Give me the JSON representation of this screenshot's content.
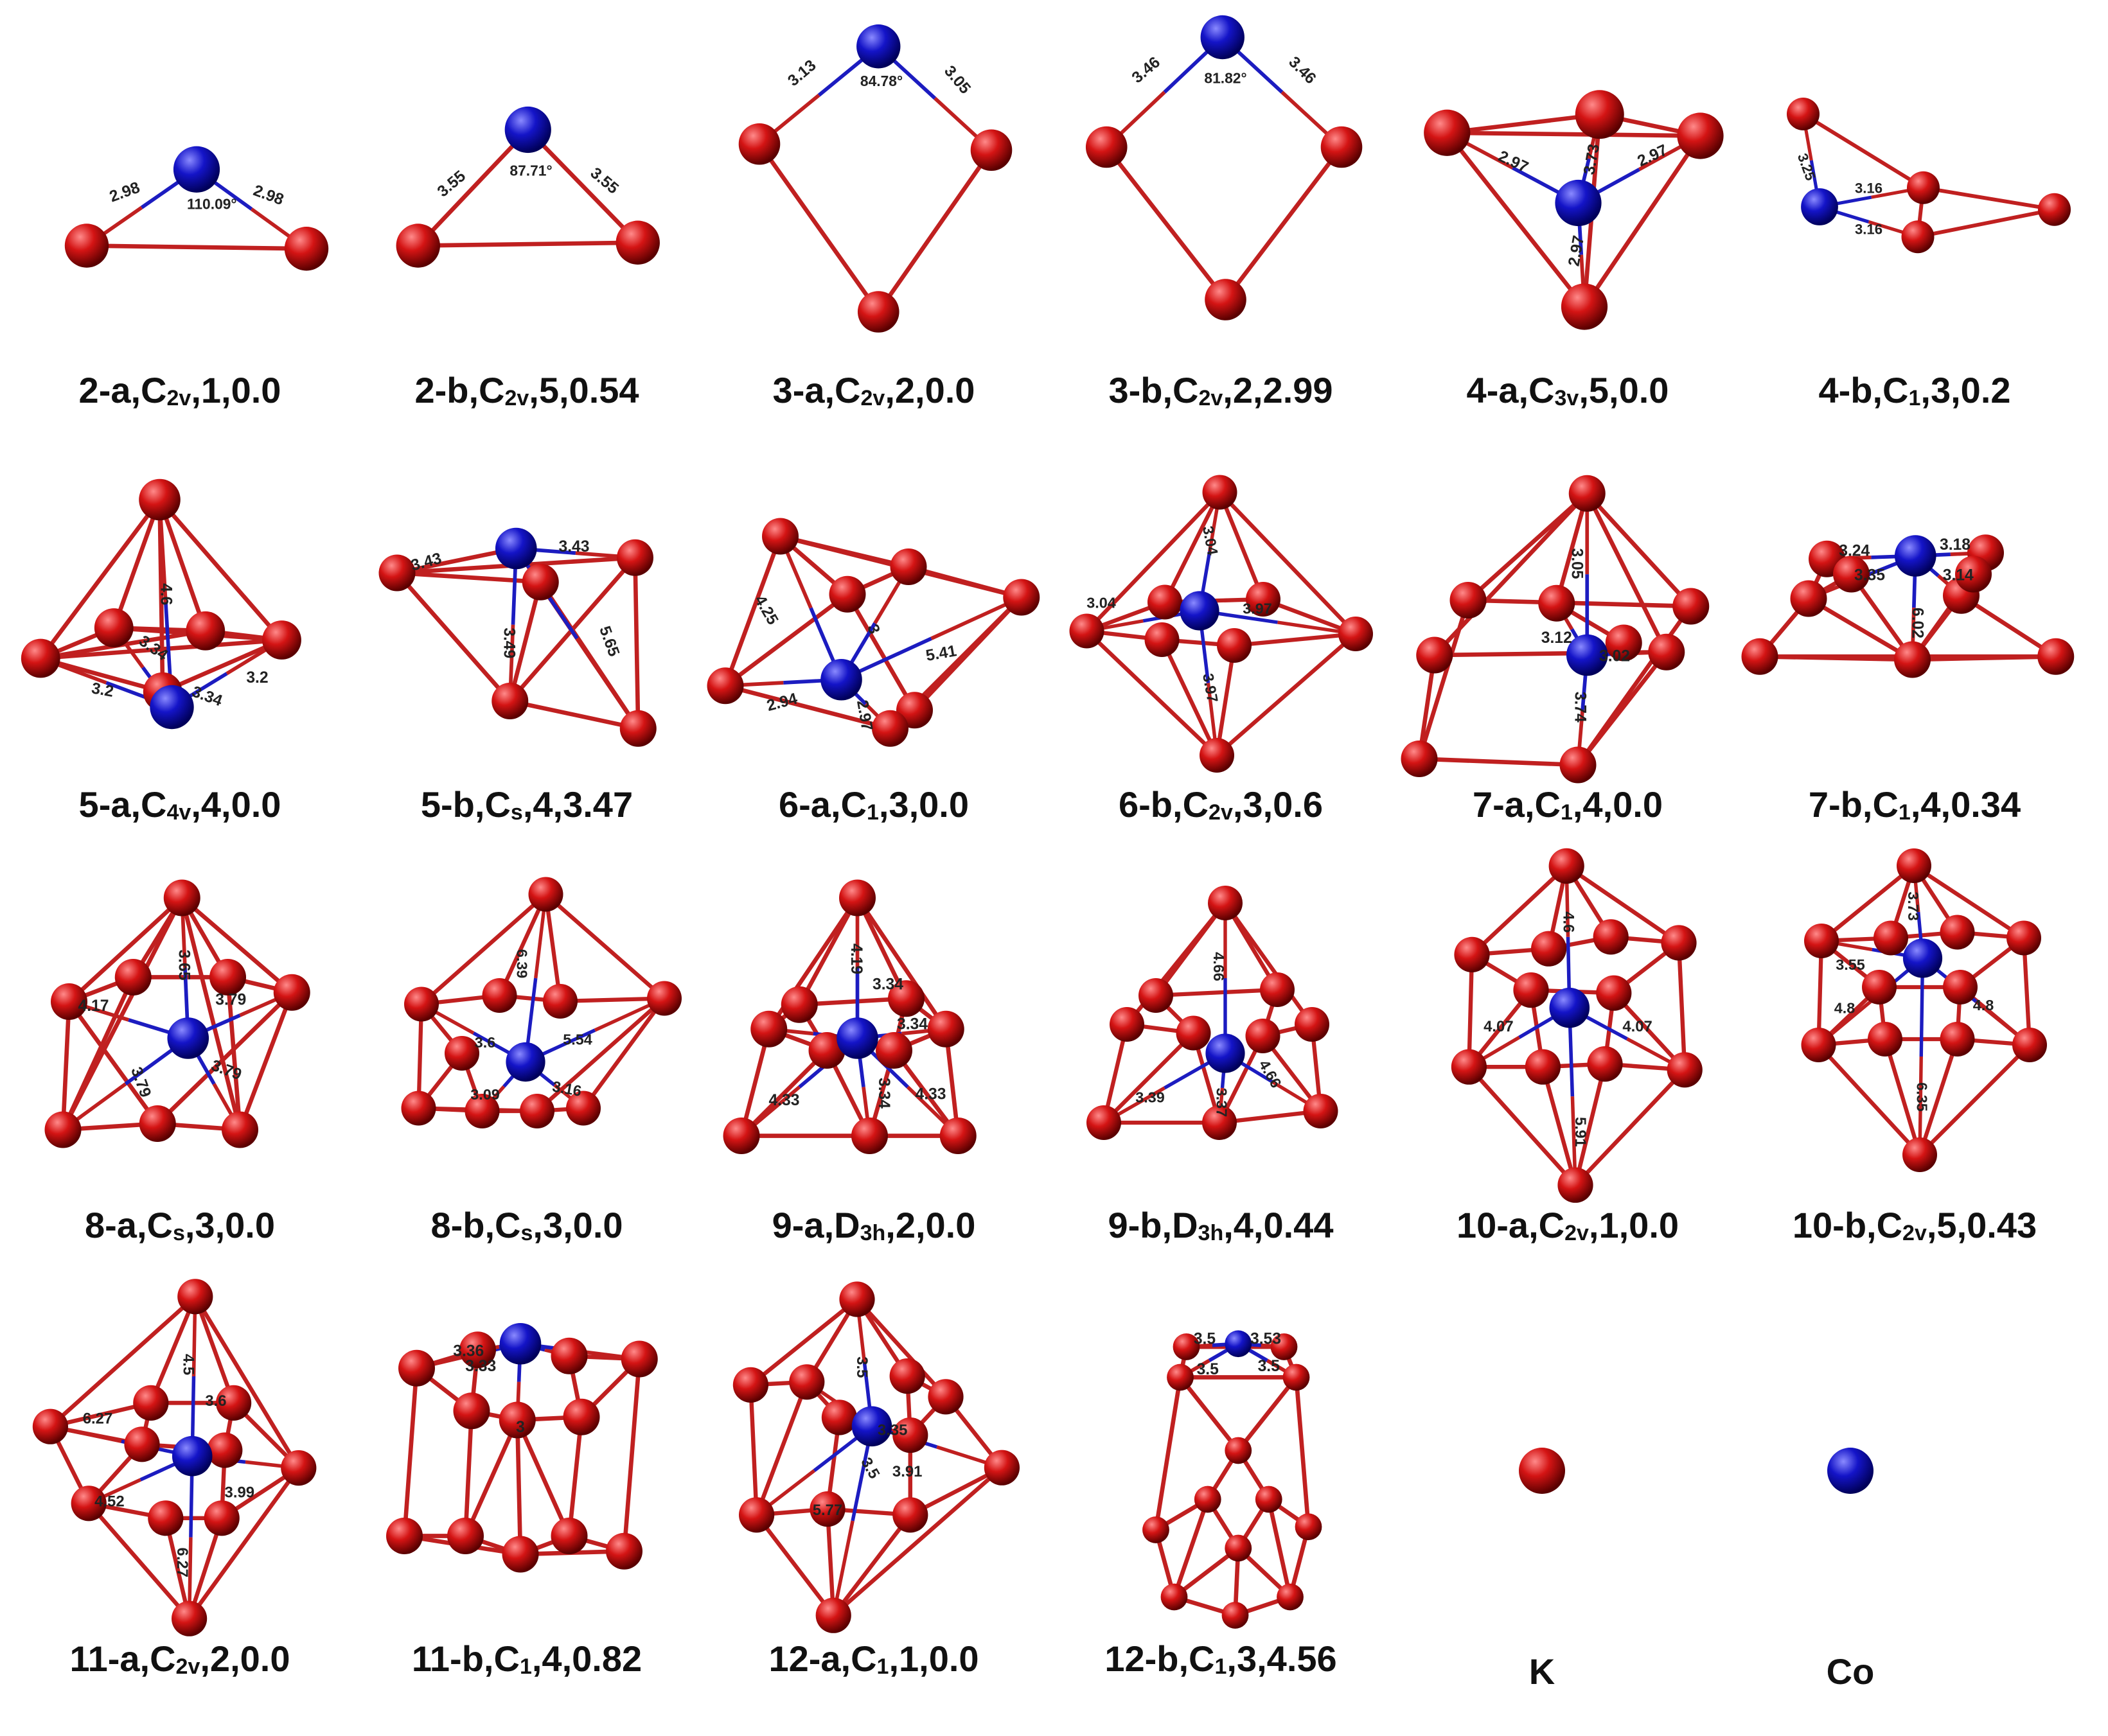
{
  "colors": {
    "K_atom": "#d41414",
    "Co_atom": "#1414c8",
    "K_bond": "#c02020",
    "Co_bond": "#1c1cc0"
  },
  "structures": [
    {
      "id": "2-a",
      "cluster": "2",
      "isomer": "a",
      "symmetry": {
        "main": "C",
        "sub": "2v"
      },
      "multiplicity": "1",
      "energy": "0.0",
      "labels": [
        "2.98",
        "2.98"
      ],
      "angle": "110.09°"
    },
    {
      "id": "2-b",
      "cluster": "2",
      "isomer": "b",
      "symmetry": {
        "main": "C",
        "sub": "2v"
      },
      "multiplicity": "5",
      "energy": "0.54",
      "labels": [
        "3.55",
        "3.55"
      ],
      "angle": "87.71°"
    },
    {
      "id": "3-a",
      "cluster": "3",
      "isomer": "a",
      "symmetry": {
        "main": "C",
        "sub": "2v"
      },
      "multiplicity": "2",
      "energy": "0.0",
      "labels": [
        "3.13",
        "3.05"
      ],
      "angle": "84.78°"
    },
    {
      "id": "3-b",
      "cluster": "3",
      "isomer": "b",
      "symmetry": {
        "main": "C",
        "sub": "2v"
      },
      "multiplicity": "2",
      "energy": "2.99",
      "labels": [
        "3.46",
        "3.46"
      ],
      "angle": "81.82°"
    },
    {
      "id": "4-a",
      "cluster": "4",
      "isomer": "a",
      "symmetry": {
        "main": "C",
        "sub": "3v"
      },
      "multiplicity": "5",
      "energy": "0.0",
      "labels": [
        "2.97",
        "3.73",
        "2.97",
        "2.97"
      ]
    },
    {
      "id": "4-b",
      "cluster": "4",
      "isomer": "b",
      "symmetry": {
        "main": "C",
        "sub": "1"
      },
      "multiplicity": "3",
      "energy": "0.2",
      "labels": [
        "3.25",
        "3.16",
        "3.16"
      ]
    },
    {
      "id": "5-a",
      "cluster": "5",
      "isomer": "a",
      "symmetry": {
        "main": "C",
        "sub": "4v"
      },
      "multiplicity": "4",
      "energy": "0.0",
      "labels": [
        "4.6",
        "3.34",
        "3.2",
        "3.34",
        "3.2"
      ]
    },
    {
      "id": "5-b",
      "cluster": "5",
      "isomer": "b",
      "symmetry": {
        "main": "C",
        "sub": "s"
      },
      "multiplicity": "4",
      "energy": "3.47",
      "labels": [
        "3.43",
        "3.43",
        "3.49",
        "5.65"
      ]
    },
    {
      "id": "6-a",
      "cluster": "6",
      "isomer": "a",
      "symmetry": {
        "main": "C",
        "sub": "1"
      },
      "multiplicity": "3",
      "energy": "0.0",
      "labels": [
        "4.25",
        "3",
        "5.41",
        "2.94",
        "2.97"
      ]
    },
    {
      "id": "6-b",
      "cluster": "6",
      "isomer": "b",
      "symmetry": {
        "main": "C",
        "sub": "2v"
      },
      "multiplicity": "3",
      "energy": "0.6",
      "labels": [
        "3.04",
        "3.04",
        "3.97",
        "3.97"
      ]
    },
    {
      "id": "7-a",
      "cluster": "7",
      "isomer": "a",
      "symmetry": {
        "main": "C",
        "sub": "1"
      },
      "multiplicity": "4",
      "energy": "0.0",
      "labels": [
        "3.05",
        "3.02",
        "3.74",
        "3.12"
      ]
    },
    {
      "id": "7-b",
      "cluster": "7",
      "isomer": "b",
      "symmetry": {
        "main": "C",
        "sub": "1"
      },
      "multiplicity": "4",
      "energy": "0.34",
      "labels": [
        "3.24",
        "3.18",
        "3.35",
        "3.14",
        "6.02"
      ]
    },
    {
      "id": "8-a",
      "cluster": "8",
      "isomer": "a",
      "symmetry": {
        "main": "C",
        "sub": "s"
      },
      "multiplicity": "3",
      "energy": "0.0",
      "labels": [
        "3.65",
        "4.17",
        "3.79",
        "3.79",
        "3.79"
      ]
    },
    {
      "id": "8-b",
      "cluster": "8",
      "isomer": "b",
      "symmetry": {
        "main": "C",
        "sub": "s"
      },
      "multiplicity": "3",
      "energy": "0.0",
      "labels": [
        "6.39",
        "3.6",
        "5.54",
        "3.09",
        "3.16"
      ]
    },
    {
      "id": "9-a",
      "cluster": "9",
      "isomer": "a",
      "symmetry": {
        "main": "D",
        "sub": "3h"
      },
      "multiplicity": "2",
      "energy": "0.0",
      "labels": [
        "4.19",
        "3.34",
        "3.34",
        "4.33",
        "4.33",
        "3.34"
      ]
    },
    {
      "id": "9-b",
      "cluster": "9",
      "isomer": "b",
      "symmetry": {
        "main": "D",
        "sub": "3h"
      },
      "multiplicity": "4",
      "energy": "0.44",
      "labels": [
        "4.66",
        "3.39",
        "4.66",
        "3.37"
      ]
    },
    {
      "id": "10-a",
      "cluster": "10",
      "isomer": "a",
      "symmetry": {
        "main": "C",
        "sub": "2v"
      },
      "multiplicity": "1",
      "energy": "0.0",
      "labels": [
        "4.6",
        "4.07",
        "4.07",
        "5.91"
      ]
    },
    {
      "id": "10-b",
      "cluster": "10",
      "isomer": "b",
      "symmetry": {
        "main": "C",
        "sub": "2v"
      },
      "multiplicity": "5",
      "energy": "0.43",
      "labels": [
        "3.73",
        "3.55",
        "4.8",
        "4.8",
        "6.35"
      ]
    },
    {
      "id": "11-a",
      "cluster": "11",
      "isomer": "a",
      "symmetry": {
        "main": "C",
        "sub": "2v"
      },
      "multiplicity": "2",
      "energy": "0.0",
      "labels": [
        "4.5",
        "6.27",
        "3.6",
        "4.52",
        "3.99",
        "6.27"
      ]
    },
    {
      "id": "11-b",
      "cluster": "11",
      "isomer": "b",
      "symmetry": {
        "main": "C",
        "sub": "1"
      },
      "multiplicity": "4",
      "energy": "0.82",
      "labels": [
        "3.36",
        "3.33",
        "3"
      ]
    },
    {
      "id": "12-a",
      "cluster": "12",
      "isomer": "a",
      "symmetry": {
        "main": "C",
        "sub": "1"
      },
      "multiplicity": "1",
      "energy": "0.0",
      "labels": [
        "3.5",
        "3.35",
        "3.91",
        "5.77",
        "3.5"
      ]
    },
    {
      "id": "12-b",
      "cluster": "12",
      "isomer": "b",
      "symmetry": {
        "main": "C",
        "sub": "1"
      },
      "multiplicity": "3",
      "energy": "4.56",
      "labels": [
        "3.5",
        "3.53",
        "3.5",
        "3.5"
      ]
    }
  ],
  "legend": [
    {
      "symbol": "K",
      "element": "K"
    },
    {
      "symbol": "Co",
      "element": "Co"
    }
  ]
}
